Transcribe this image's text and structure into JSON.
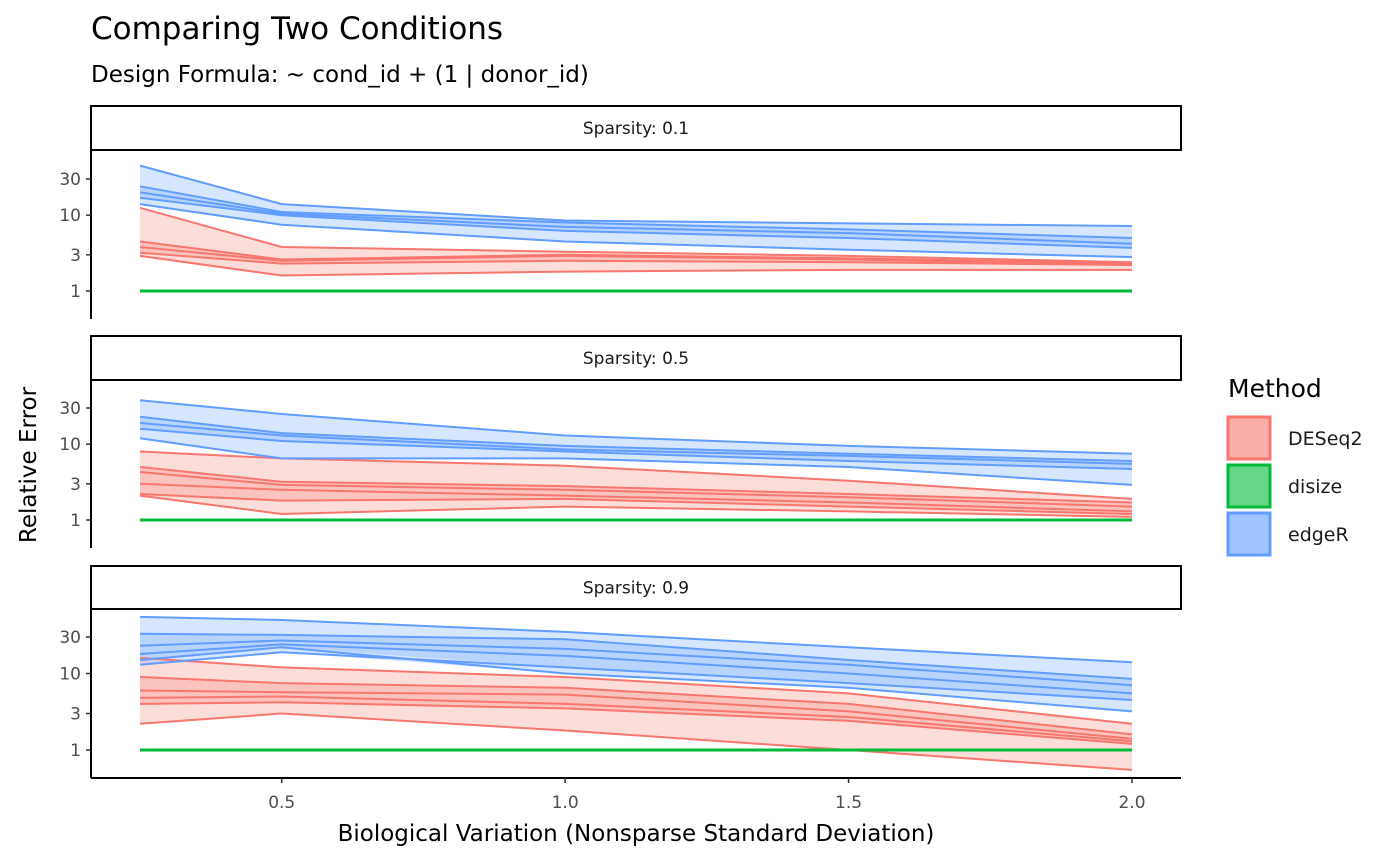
{
  "chart_data": {
    "type": "area",
    "title": "Comparing Two Conditions",
    "subtitle": "Design Formula: ~ cond_id + (1 | donor_id)",
    "xlabel": "Biological Variation (Nonsparse Standard Deviation)",
    "ylabel": "Relative Error",
    "y_scale": "log",
    "x": [
      0.25,
      0.5,
      1.0,
      1.5,
      2.0
    ],
    "xlim": [
      0.2,
      2.07
    ],
    "x_ticks": [
      "0.5",
      "1.0",
      "1.5",
      "2.0"
    ],
    "y_ticks": [
      "1",
      "3",
      "10",
      "30"
    ],
    "legend": {
      "title": "Method",
      "placement": "right",
      "entries": [
        {
          "name": "DESeq2",
          "color": "#F8766D"
        },
        {
          "name": "disize",
          "color": "#00BA38"
        },
        {
          "name": "edgeR",
          "color": "#619CFF"
        }
      ]
    },
    "panels": [
      {
        "label": "Sparsity: 0.1",
        "ylim": [
          0.4,
          60
        ],
        "series": [
          {
            "name": "DESeq2",
            "color": "#F8766D",
            "lines": [
              [
                12.5,
                3.8,
                3.3,
                2.9,
                2.4
              ],
              [
                4.5,
                2.6,
                3.0,
                2.7,
                2.3
              ],
              [
                3.8,
                2.5,
                2.9,
                2.6,
                2.2
              ],
              [
                3.2,
                2.3,
                2.5,
                2.4,
                2.2
              ],
              [
                2.9,
                1.6,
                1.8,
                1.9,
                1.9
              ]
            ]
          },
          {
            "name": "edgeR",
            "color": "#619CFF",
            "lines": [
              [
                45,
                14,
                8.5,
                7.8,
                7.2
              ],
              [
                24,
                11,
                8.0,
                6.5,
                5.0
              ],
              [
                20,
                10.5,
                7.0,
                5.8,
                4.2
              ],
              [
                17,
                10,
                6.2,
                5.0,
                3.7
              ],
              [
                14,
                7.5,
                4.5,
                3.5,
                2.8
              ]
            ]
          },
          {
            "name": "disize",
            "color": "#00BA38",
            "lines": [
              [
                1.0,
                1.0,
                1.0,
                1.0,
                1.0
              ]
            ]
          }
        ]
      },
      {
        "label": "Sparsity: 0.5",
        "ylim": [
          0.4,
          60
        ],
        "series": [
          {
            "name": "DESeq2",
            "color": "#F8766D",
            "lines": [
              [
                8.0,
                6.5,
                5.2,
                3.3,
                1.9
              ],
              [
                5.0,
                3.2,
                2.8,
                2.2,
                1.7
              ],
              [
                4.3,
                2.9,
                2.5,
                2.0,
                1.5
              ],
              [
                3.0,
                2.5,
                2.1,
                1.7,
                1.3
              ],
              [
                2.2,
                1.8,
                1.9,
                1.5,
                1.2
              ],
              [
                2.1,
                1.2,
                1.5,
                1.3,
                1.1
              ]
            ]
          },
          {
            "name": "edgeR",
            "color": "#619CFF",
            "lines": [
              [
                38,
                25,
                13,
                9.5,
                7.5
              ],
              [
                23,
                14,
                9.5,
                7.5,
                6.0
              ],
              [
                19,
                13,
                8.5,
                7.0,
                5.5
              ],
              [
                16,
                11,
                8.0,
                6.0,
                4.7
              ],
              [
                12,
                6.5,
                6.5,
                5.0,
                2.9
              ]
            ]
          },
          {
            "name": "disize",
            "color": "#00BA38",
            "lines": [
              [
                1.0,
                1.0,
                1.0,
                1.0,
                1.0
              ]
            ]
          }
        ]
      },
      {
        "label": "Sparsity: 0.9",
        "ylim": [
          0.4,
          80
        ],
        "series": [
          {
            "name": "DESeq2",
            "color": "#F8766D",
            "lines": [
              [
                16,
                12,
                9.0,
                5.5,
                2.2
              ],
              [
                9.0,
                7.5,
                6.5,
                4.0,
                1.6
              ],
              [
                6.0,
                5.7,
                5.3,
                3.2,
                1.4
              ],
              [
                4.8,
                5.0,
                4.0,
                2.7,
                1.3
              ],
              [
                4.0,
                4.2,
                3.5,
                2.4,
                1.2
              ],
              [
                2.2,
                3.0,
                1.8,
                1.0,
                0.55
              ]
            ]
          },
          {
            "name": "edgeR",
            "color": "#619CFF",
            "lines": [
              [
                55,
                50,
                35,
                22,
                14
              ],
              [
                33,
                32,
                28,
                15,
                8.5
              ],
              [
                23,
                27,
                21,
                13,
                7.0
              ],
              [
                18,
                24,
                17,
                10,
                5.5
              ],
              [
                13,
                19,
                12,
                7.5,
                4.5
              ],
              [
                15,
                22,
                10,
                6.5,
                3.2
              ]
            ]
          },
          {
            "name": "disize",
            "color": "#00BA38",
            "lines": [
              [
                1.0,
                1.0,
                1.0,
                1.0,
                1.0
              ]
            ]
          }
        ]
      }
    ]
  }
}
